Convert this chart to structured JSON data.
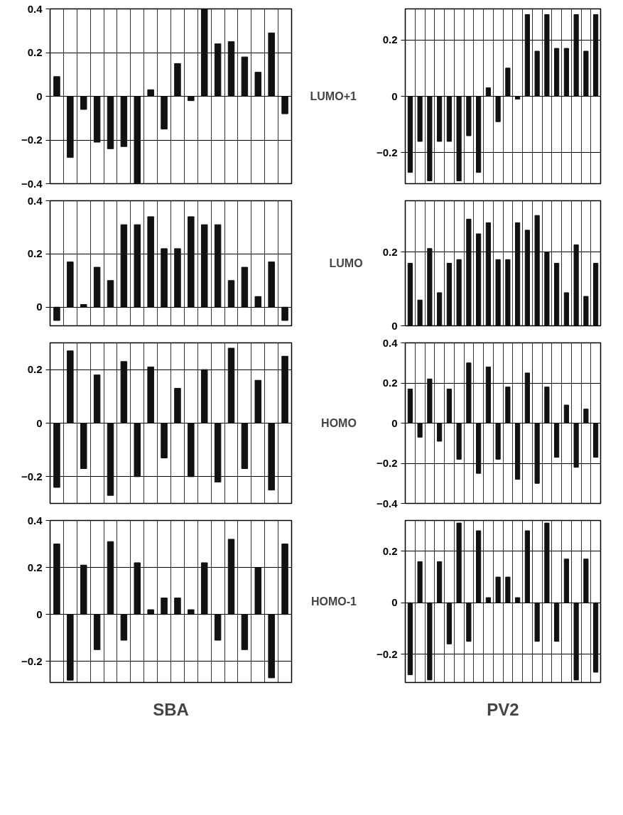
{
  "chart_data": [
    {
      "type": "bar",
      "categories": [
        null,
        null,
        null,
        null,
        null,
        null,
        null,
        null,
        null,
        null,
        null,
        null,
        null,
        null,
        null,
        null,
        null,
        null
      ],
      "color": "#111111",
      "ylim": [
        -0.4,
        0.4
      ],
      "yticks": [
        -0.4,
        -0.2,
        0,
        0.2,
        0.4
      ],
      "grid": true,
      "tick_labels": "y",
      "values": [
        0.09,
        -0.28,
        -0.06,
        -0.21,
        -0.24,
        -0.23,
        -0.4,
        0.03,
        -0.15,
        0.15,
        -0.02,
        0.4,
        0.24,
        0.25,
        0.18,
        0.11,
        0.29,
        -0.08
      ]
    },
    {
      "type": "bar",
      "ylabel": "LUMO+1",
      "categories": [
        null,
        null,
        null,
        null,
        null,
        null,
        null,
        null,
        null,
        null,
        null,
        null,
        null,
        null,
        null,
        null,
        null,
        null,
        null,
        null
      ],
      "color": "#111111",
      "ylim": [
        -0.31,
        0.31
      ],
      "yticks": [
        -0.2,
        0,
        0.2
      ],
      "grid": true,
      "tick_labels": "y",
      "values": [
        -0.27,
        -0.16,
        -0.3,
        -0.16,
        -0.16,
        -0.3,
        -0.14,
        -0.27,
        0.03,
        -0.09,
        0.1,
        -0.01,
        0.29,
        0.16,
        0.29,
        0.17,
        0.17,
        0.29,
        0.16,
        0.29
      ]
    },
    {
      "type": "bar",
      "categories": [
        null,
        null,
        null,
        null,
        null,
        null,
        null,
        null,
        null,
        null,
        null,
        null,
        null,
        null,
        null,
        null,
        null,
        null
      ],
      "color": "#111111",
      "ylim": [
        -0.07,
        0.4
      ],
      "yticks": [
        0,
        0.2,
        0.4
      ],
      "grid": true,
      "tick_labels": "y",
      "values": [
        -0.05,
        0.17,
        0.01,
        0.15,
        0.1,
        0.31,
        0.31,
        0.34,
        0.22,
        0.22,
        0.34,
        0.31,
        0.31,
        0.1,
        0.15,
        0.04,
        0.17,
        -0.05
      ]
    },
    {
      "type": "bar",
      "ylabel": "LUMO",
      "categories": [
        null,
        null,
        null,
        null,
        null,
        null,
        null,
        null,
        null,
        null,
        null,
        null,
        null,
        null,
        null,
        null,
        null,
        null,
        null,
        null
      ],
      "color": "#111111",
      "ylim": [
        0,
        0.34
      ],
      "yticks": [
        0,
        0.2
      ],
      "grid": true,
      "tick_labels": "y",
      "values": [
        0.17,
        0.07,
        0.21,
        0.09,
        0.17,
        0.18,
        0.29,
        0.25,
        0.28,
        0.18,
        0.18,
        0.28,
        0.26,
        0.3,
        0.2,
        0.17,
        0.09,
        0.22,
        0.08,
        0.17
      ]
    },
    {
      "type": "bar",
      "categories": [
        null,
        null,
        null,
        null,
        null,
        null,
        null,
        null,
        null,
        null,
        null,
        null,
        null,
        null,
        null,
        null,
        null,
        null
      ],
      "color": "#111111",
      "ylim": [
        -0.3,
        0.3
      ],
      "yticks": [
        -0.2,
        0,
        0.2
      ],
      "grid": true,
      "tick_labels": "y",
      "values": [
        -0.24,
        0.27,
        -0.17,
        0.18,
        -0.27,
        0.23,
        -0.2,
        0.21,
        -0.13,
        0.13,
        -0.2,
        0.2,
        -0.22,
        0.28,
        -0.17,
        0.16,
        -0.25,
        0.25
      ]
    },
    {
      "type": "bar",
      "ylabel": "HOMO",
      "categories": [
        null,
        null,
        null,
        null,
        null,
        null,
        null,
        null,
        null,
        null,
        null,
        null,
        null,
        null,
        null,
        null,
        null,
        null,
        null,
        null
      ],
      "color": "#111111",
      "ylim": [
        -0.4,
        0.4
      ],
      "yticks": [
        -0.4,
        -0.2,
        0,
        0.2,
        0.4
      ],
      "grid": true,
      "tick_labels": "y",
      "values": [
        0.17,
        -0.07,
        0.22,
        -0.09,
        0.17,
        -0.18,
        0.3,
        -0.25,
        0.28,
        -0.18,
        0.18,
        -0.28,
        0.25,
        -0.3,
        0.18,
        -0.17,
        0.09,
        -0.22,
        0.07,
        -0.17
      ]
    },
    {
      "type": "bar",
      "xlabel": "SBA",
      "categories": [
        null,
        null,
        null,
        null,
        null,
        null,
        null,
        null,
        null,
        null,
        null,
        null,
        null,
        null,
        null,
        null,
        null,
        null
      ],
      "color": "#111111",
      "ylim": [
        -0.29,
        0.4
      ],
      "yticks": [
        -0.2,
        0,
        0.2,
        0.4
      ],
      "grid": true,
      "tick_labels": "y",
      "values": [
        0.3,
        -0.28,
        0.21,
        -0.15,
        0.31,
        -0.11,
        0.22,
        0.02,
        0.07,
        0.07,
        0.02,
        0.22,
        -0.11,
        0.32,
        -0.15,
        0.2,
        -0.27,
        0.3
      ]
    },
    {
      "type": "bar",
      "xlabel": "PV2",
      "ylabel": "HOMO-1",
      "categories": [
        null,
        null,
        null,
        null,
        null,
        null,
        null,
        null,
        null,
        null,
        null,
        null,
        null,
        null,
        null,
        null,
        null,
        null,
        null,
        null
      ],
      "color": "#111111",
      "ylim": [
        -0.31,
        0.32
      ],
      "yticks": [
        -0.2,
        0,
        0.2
      ],
      "grid": true,
      "tick_labels": "y",
      "values": [
        -0.28,
        0.16,
        -0.3,
        0.16,
        -0.16,
        0.31,
        -0.15,
        0.28,
        0.02,
        0.1,
        0.1,
        0.02,
        0.28,
        -0.15,
        0.31,
        -0.15,
        0.17,
        -0.3,
        0.17,
        -0.27
      ]
    }
  ]
}
